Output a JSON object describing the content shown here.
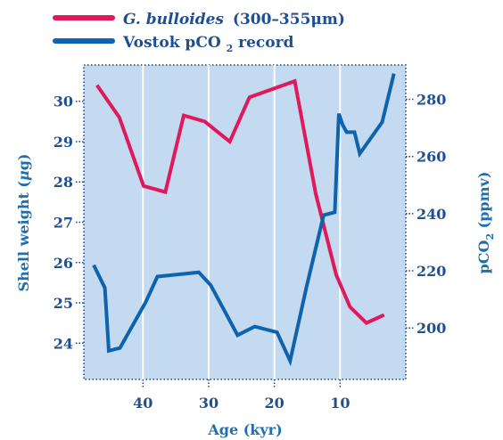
{
  "legend": {
    "shell_species": "G. bulloides",
    "shell_size": "(300–355μm)",
    "co2_prefix": "Vostok pCO",
    "co2_sub": "2",
    "co2_suffix": " record"
  },
  "axes": {
    "x_title": "Age (kyr)",
    "y_left_title_main": "Shell weight (",
    "y_left_title_mu": "μ",
    "y_left_title_end": "g)",
    "y_right_title_prefix": "pCO",
    "y_right_title_sub": "2",
    "y_right_title_suffix": " (ppmv)",
    "x_ticks": [
      "40",
      "30",
      "20",
      "10"
    ],
    "y_left_ticks": [
      "24",
      "25",
      "26",
      "27",
      "28",
      "29",
      "30"
    ],
    "y_right_ticks": [
      "200",
      "220",
      "240",
      "260",
      "280"
    ]
  },
  "colors": {
    "shell": "#e0195c",
    "co2": "#0e63ad",
    "plot_bg": "#c3daf0",
    "text": "#1f4f8f"
  },
  "chart_data": {
    "type": "line",
    "xlabel": "Age (kyr)",
    "ylabel_left": "Shell weight (μg)",
    "ylabel_right": "pCO2 (ppmv)",
    "x_reversed": true,
    "xlim": [
      49,
      0
    ],
    "ylim_left": [
      23.1,
      30.9
    ],
    "ylim_right": [
      182,
      292
    ],
    "x_ticks": [
      40,
      30,
      20,
      10
    ],
    "y_left_ticks": [
      24,
      25,
      26,
      27,
      28,
      29,
      30
    ],
    "y_right_ticks": [
      200,
      220,
      240,
      260,
      280
    ],
    "grid": "vertical",
    "legend": "top-left",
    "series": [
      {
        "name": "G. bulloides (300–355μm)",
        "axis": "left",
        "points": [
          [
            47,
            30.4
          ],
          [
            43.6,
            29.6
          ],
          [
            39.9,
            27.9
          ],
          [
            36.6,
            27.75
          ],
          [
            33.8,
            29.65
          ],
          [
            30.6,
            29.5
          ],
          [
            26.8,
            29.0
          ],
          [
            23.8,
            30.1
          ],
          [
            16.9,
            30.5
          ],
          [
            13.7,
            27.7
          ],
          [
            10.6,
            25.7
          ],
          [
            8.5,
            24.9
          ],
          [
            6.0,
            24.5
          ],
          [
            3.3,
            24.7
          ]
        ]
      },
      {
        "name": "Vostok pCO2 record",
        "axis": "right",
        "points": [
          [
            47.5,
            222
          ],
          [
            45.8,
            214
          ],
          [
            45.2,
            192
          ],
          [
            43.5,
            193
          ],
          [
            39.6,
            209
          ],
          [
            37.8,
            218
          ],
          [
            31.5,
            219.5
          ],
          [
            29.7,
            215
          ],
          [
            25.6,
            197.5
          ],
          [
            23.0,
            200.5
          ],
          [
            19.6,
            198.5
          ],
          [
            17.6,
            188.5
          ],
          [
            15.1,
            214.5
          ],
          [
            12.5,
            239.5
          ],
          [
            10.8,
            240.5
          ],
          [
            10.2,
            275
          ],
          [
            9.6,
            271
          ],
          [
            9.0,
            268.5
          ],
          [
            7.8,
            268.5
          ],
          [
            7.0,
            261
          ],
          [
            3.6,
            272
          ],
          [
            1.8,
            289
          ]
        ]
      }
    ]
  }
}
